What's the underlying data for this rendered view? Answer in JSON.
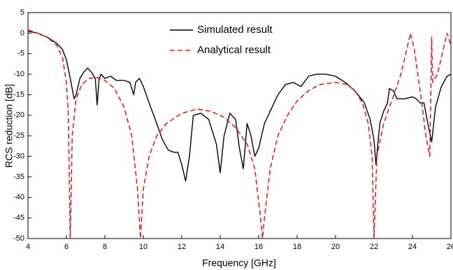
{
  "chart_data": {
    "type": "line",
    "xlabel": "Frequency [GHz]",
    "ylabel": "RCS reduction [dB]",
    "xlim": [
      4,
      26
    ],
    "ylim": [
      -50,
      5
    ],
    "xticks": [
      4,
      6,
      8,
      10,
      12,
      14,
      16,
      18,
      20,
      22,
      24,
      26
    ],
    "yticks": [
      5,
      0,
      -5,
      -10,
      -15,
      -20,
      -25,
      -30,
      -35,
      -40,
      -45,
      -50
    ],
    "legend": "top",
    "series": [
      {
        "name": "Simulated result",
        "color": "#000000",
        "dash": false,
        "x": [
          4,
          4.5,
          5,
          5.5,
          5.8,
          6,
          6.2,
          6.4,
          6.5,
          6.7,
          6.9,
          7.1,
          7.3,
          7.5,
          7.6,
          7.7,
          7.8,
          8,
          8.3,
          8.6,
          9,
          9.3,
          9.5,
          9.6,
          9.8,
          10,
          10.3,
          10.7,
          11,
          11.3,
          11.6,
          11.8,
          12,
          12.2,
          12.4,
          12.6,
          13,
          13.4,
          13.8,
          14,
          14.2,
          14.5,
          14.8,
          15,
          15.2,
          15.4,
          15.6,
          15.8,
          16,
          16.3,
          16.6,
          17,
          17.4,
          17.8,
          18.2,
          18.6,
          19,
          19.5,
          20,
          20.5,
          21,
          21.5,
          21.8,
          22,
          22.1,
          22.2,
          22.3,
          22.5,
          22.7,
          22.8,
          23,
          23.2,
          23.6,
          24,
          24.2,
          24.4,
          24.6,
          24.8,
          25,
          25.2,
          25.5,
          25.8,
          26
        ],
        "values": [
          0.5,
          0,
          -1,
          -2.5,
          -4,
          -6.5,
          -11,
          -16,
          -15,
          -11,
          -9.5,
          -8.5,
          -9.5,
          -11,
          -17.5,
          -11,
          -10,
          -11,
          -10.5,
          -11.5,
          -11.5,
          -12,
          -15,
          -12,
          -11,
          -13,
          -17,
          -22,
          -26,
          -28.5,
          -29,
          -29,
          -32,
          -36,
          -30,
          -20,
          -19.5,
          -21,
          -27,
          -34,
          -25,
          -19.5,
          -21,
          -28,
          -33,
          -22,
          -25,
          -30,
          -28,
          -22,
          -19,
          -15,
          -12.5,
          -12,
          -13,
          -10.5,
          -10,
          -10,
          -10.5,
          -12,
          -14,
          -17,
          -21,
          -26,
          -32,
          -27,
          -22,
          -19,
          -17,
          -13.5,
          -14,
          -16,
          -16,
          -15.5,
          -16,
          -17,
          -17,
          -22,
          -26.5,
          -18,
          -13,
          -10.5,
          -10
        ]
      },
      {
        "name": "Analytical result",
        "color": "#e0201b",
        "dash": true,
        "x": [
          4,
          4.5,
          5,
          5.5,
          5.8,
          6,
          6.1,
          6.2,
          6.3,
          6.5,
          6.8,
          7.2,
          7.6,
          8,
          8.5,
          9,
          9.4,
          9.7,
          9.85,
          10,
          10.3,
          10.7,
          11.2,
          12,
          12.8,
          13.5,
          14.2,
          14.8,
          15.4,
          15.8,
          16.1,
          16.2,
          16.3,
          16.6,
          17,
          17.5,
          18,
          18.6,
          19.2,
          20,
          20.6,
          21,
          21.4,
          21.7,
          21.9,
          22,
          22.15,
          22.5,
          23,
          23.4,
          23.7,
          23.9,
          24.1,
          24.4,
          24.7,
          24.9,
          25,
          25.05,
          25.3,
          25.6,
          25.8,
          26
        ],
        "values": [
          0.8,
          0,
          -1,
          -3,
          -6,
          -12,
          -20,
          -50,
          -25,
          -16,
          -12.5,
          -11,
          -10.8,
          -11.5,
          -13.5,
          -18,
          -25,
          -38,
          -50,
          -38,
          -30,
          -25,
          -22,
          -19.5,
          -18.5,
          -19,
          -20.5,
          -23,
          -27,
          -33,
          -45,
          -50,
          -45,
          -33,
          -25,
          -20,
          -16.5,
          -14,
          -12.5,
          -12,
          -12.5,
          -14,
          -17,
          -22,
          -30,
          -50,
          -30,
          -22,
          -15.5,
          -10,
          -4,
          0,
          -4,
          -14,
          -25,
          -30,
          -1,
          -12,
          -10,
          -4,
          0,
          -3
        ]
      }
    ]
  }
}
